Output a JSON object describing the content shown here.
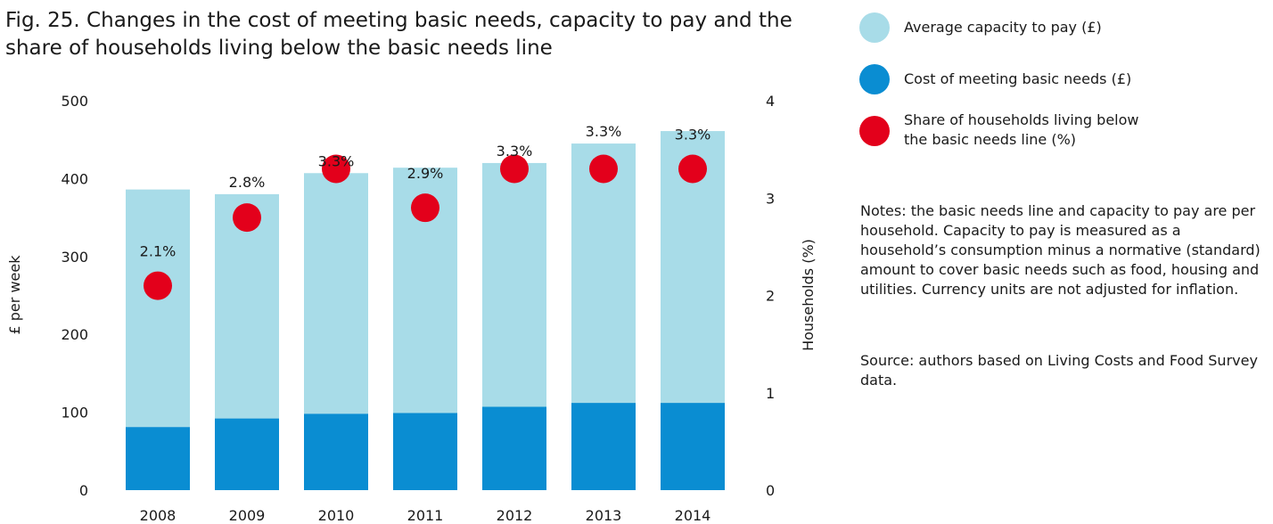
{
  "title": "Fig. 25. Changes in the cost of meeting basic needs, capacity to pay and the share of households living below the basic needs line",
  "colors": {
    "capacity": "#a8dce8",
    "cost": "#0a8dd2",
    "share": "#e3001b"
  },
  "legend": {
    "capacity": "Average capacity to pay (£)",
    "cost": "Cost of meeting basic needs (£)",
    "share": "Share of households living below the basic needs line (%)"
  },
  "notes": "Notes: the basic needs line and capacity to pay are per household. Capacity to pay is measured as a household’s consumption minus a normative (standard) amount to cover basic needs such as food, housing and utilities. Currency units are not adjusted for inflation.",
  "source": "Source: authors based on Living Costs and Food Survey data.",
  "chart_data": {
    "type": "bar",
    "stacked": true,
    "categories": [
      "2008",
      "2009",
      "2010",
      "2011",
      "2012",
      "2013",
      "2014"
    ],
    "series": [
      {
        "name": "Cost of meeting basic needs (£)",
        "axis": "left",
        "values": [
          81,
          92,
          98,
          99,
          107,
          112,
          112
        ]
      },
      {
        "name": "Average capacity to pay (£)",
        "axis": "left",
        "values": [
          305,
          288,
          309,
          315,
          313,
          333,
          349
        ]
      },
      {
        "name": "Share of households living below the basic needs line (%)",
        "axis": "right",
        "type": "scatter",
        "values": [
          2.1,
          2.8,
          3.3,
          2.9,
          3.3,
          3.3,
          3.3
        ],
        "labels": [
          "2.1%",
          "2.8%",
          "3.3%",
          "2.9%",
          "3.3%",
          "3.3%",
          "3.3%"
        ]
      }
    ],
    "ylabel": "£ per week",
    "ylim": [
      0,
      500
    ],
    "yticks": [
      "0",
      "100",
      "200",
      "300",
      "400",
      "500"
    ],
    "y2label": "Households (%)",
    "y2lim": [
      0,
      4
    ],
    "y2ticks": [
      "0",
      "1",
      "2",
      "3",
      "4"
    ],
    "grid": false,
    "legend_position": "right"
  }
}
